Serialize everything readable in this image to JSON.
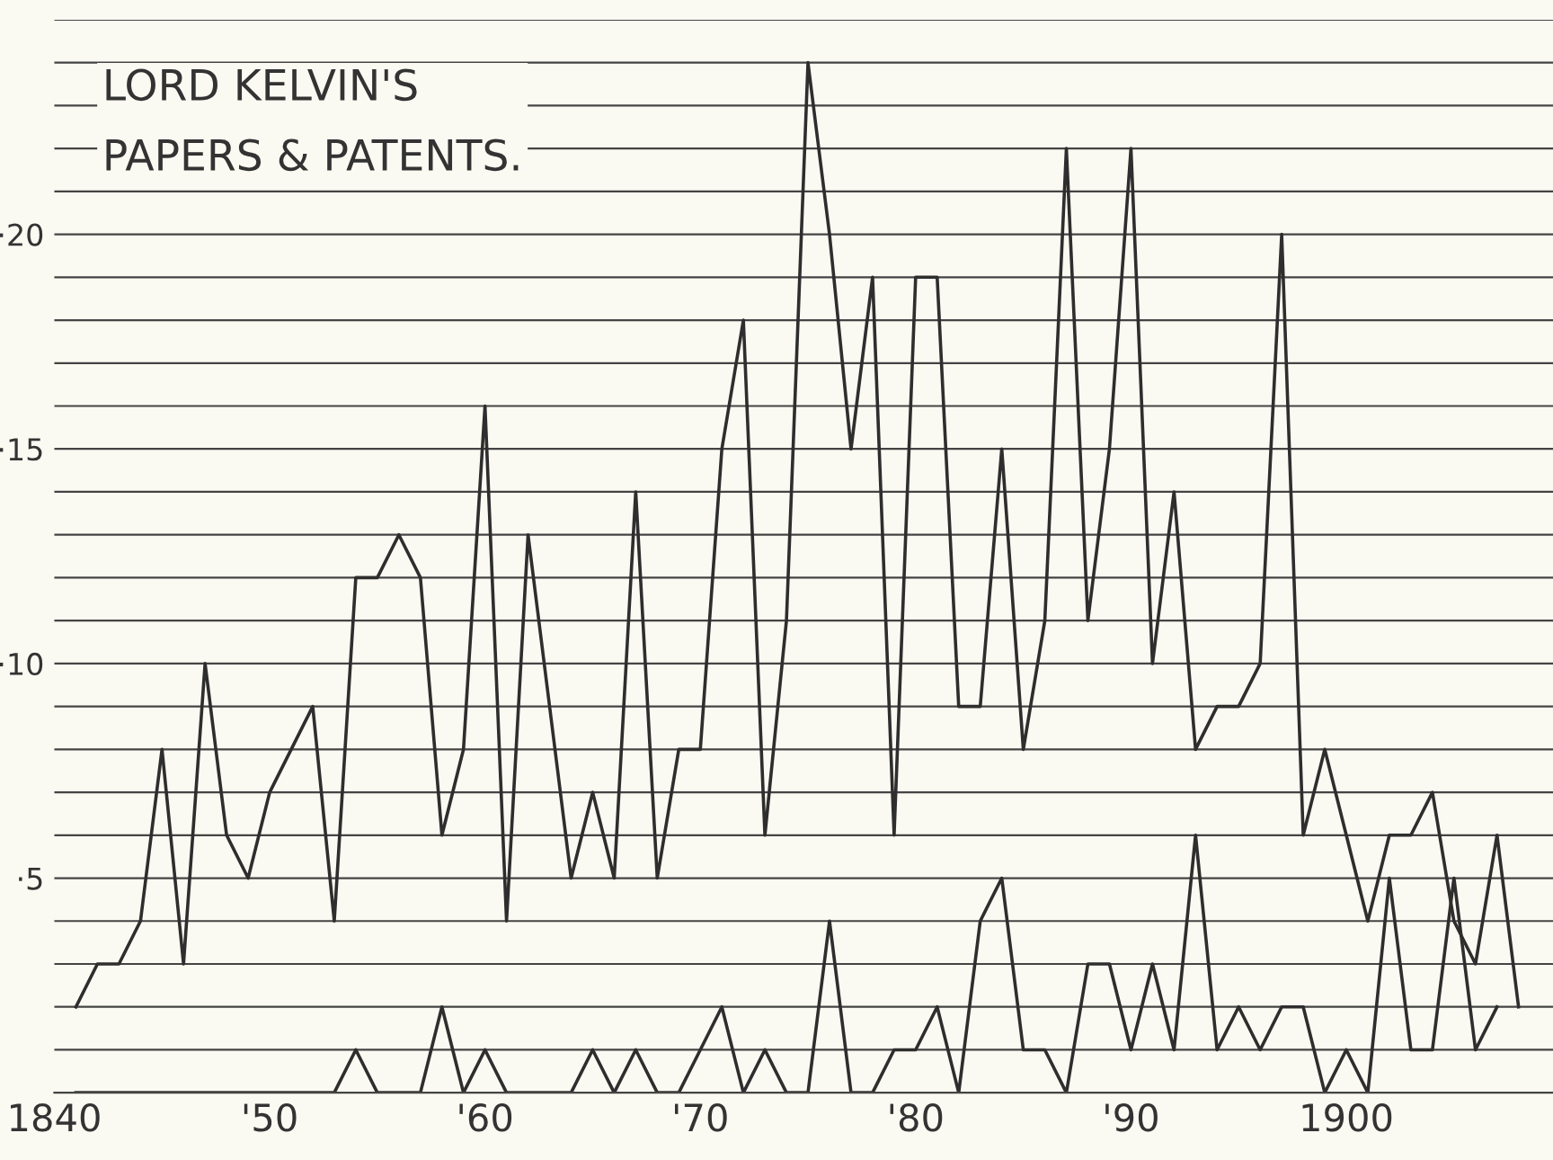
{
  "chart_data": {
    "type": "line",
    "title": "LORD KELVIN'S\nPAPERS & PATENTS.",
    "x": [
      1841,
      1842,
      1843,
      1844,
      1845,
      1846,
      1847,
      1848,
      1849,
      1850,
      1851,
      1852,
      1853,
      1854,
      1855,
      1856,
      1857,
      1858,
      1859,
      1860,
      1861,
      1862,
      1863,
      1864,
      1865,
      1866,
      1867,
      1868,
      1869,
      1870,
      1871,
      1872,
      1873,
      1874,
      1875,
      1876,
      1877,
      1878,
      1879,
      1880,
      1881,
      1882,
      1883,
      1884,
      1885,
      1886,
      1887,
      1888,
      1889,
      1890,
      1891,
      1892,
      1893,
      1894,
      1895,
      1896,
      1897,
      1898,
      1899,
      1900,
      1901,
      1902,
      1903,
      1904,
      1905,
      1906,
      1907,
      1908
    ],
    "series": [
      {
        "color": "#2e2e2e",
        "values": [
          2,
          3,
          3,
          4,
          8,
          3,
          10,
          6,
          5,
          7,
          8,
          9,
          4,
          12,
          12,
          13,
          12,
          6,
          8,
          16,
          4,
          13,
          9,
          5,
          7,
          5,
          14,
          5,
          8,
          8,
          15,
          18,
          6,
          11,
          24,
          20,
          15,
          19,
          6,
          19,
          19,
          9,
          9,
          15,
          8,
          11,
          22,
          11,
          15,
          22,
          10,
          14,
          8,
          9,
          9,
          10,
          20,
          6,
          8,
          6,
          4,
          6,
          6,
          7,
          4,
          3,
          6,
          2
        ]
      },
      {
        "color": "#2e2e2e",
        "values": [
          0,
          0,
          0,
          0,
          0,
          0,
          0,
          0,
          0,
          0,
          0,
          0,
          0,
          1,
          0,
          0,
          0,
          2,
          0,
          1,
          0,
          0,
          0,
          0,
          1,
          0,
          1,
          0,
          0,
          1,
          2,
          0,
          1,
          0,
          0,
          4,
          0,
          0,
          1,
          1,
          2,
          0,
          4,
          5,
          1,
          1,
          0,
          3,
          3,
          1,
          3,
          1,
          6,
          1,
          2,
          1,
          2,
          2,
          0,
          1,
          0,
          5,
          1,
          1,
          5,
          1,
          2,
          null
        ]
      }
    ],
    "xlim": [
      1840,
      1909.6
    ],
    "xticks": [
      1840,
      {
        "value": 1850,
        "label": "'50"
      },
      {
        "value": 1860,
        "label": "'60"
      },
      {
        "value": 1870,
        "label": "'70"
      },
      {
        "value": 1880,
        "label": "'80"
      },
      {
        "value": 1890,
        "label": "'90"
      },
      1900
    ],
    "ylim": [
      0,
      25
    ],
    "yticks": [
      {
        "value": 0,
        "label": null
      },
      {
        "value": 1,
        "label": null
      },
      {
        "value": 2,
        "label": null
      },
      {
        "value": 3,
        "label": null
      },
      {
        "value": 4,
        "label": null
      },
      {
        "value": 5,
        "label": "·5"
      },
      {
        "value": 6,
        "label": null
      },
      {
        "value": 7,
        "label": null
      },
      {
        "value": 8,
        "label": null
      },
      {
        "value": 9,
        "label": null
      },
      {
        "value": 10,
        "label": "·10"
      },
      {
        "value": 11,
        "label": null
      },
      {
        "value": 12,
        "label": null
      },
      {
        "value": 13,
        "label": null
      },
      {
        "value": 14,
        "label": null
      },
      {
        "value": 15,
        "label": "·15"
      },
      {
        "value": 16,
        "label": null
      },
      {
        "value": 17,
        "label": null
      },
      {
        "value": 18,
        "label": null
      },
      {
        "value": 19,
        "label": null
      },
      {
        "value": 20,
        "label": "·20"
      },
      {
        "value": 21,
        "label": null
      },
      {
        "value": 22,
        "label": null
      },
      {
        "value": 23,
        "label": null
      },
      {
        "value": 24,
        "label": null
      },
      {
        "value": 25,
        "label": null
      }
    ],
    "grid": "y"
  }
}
